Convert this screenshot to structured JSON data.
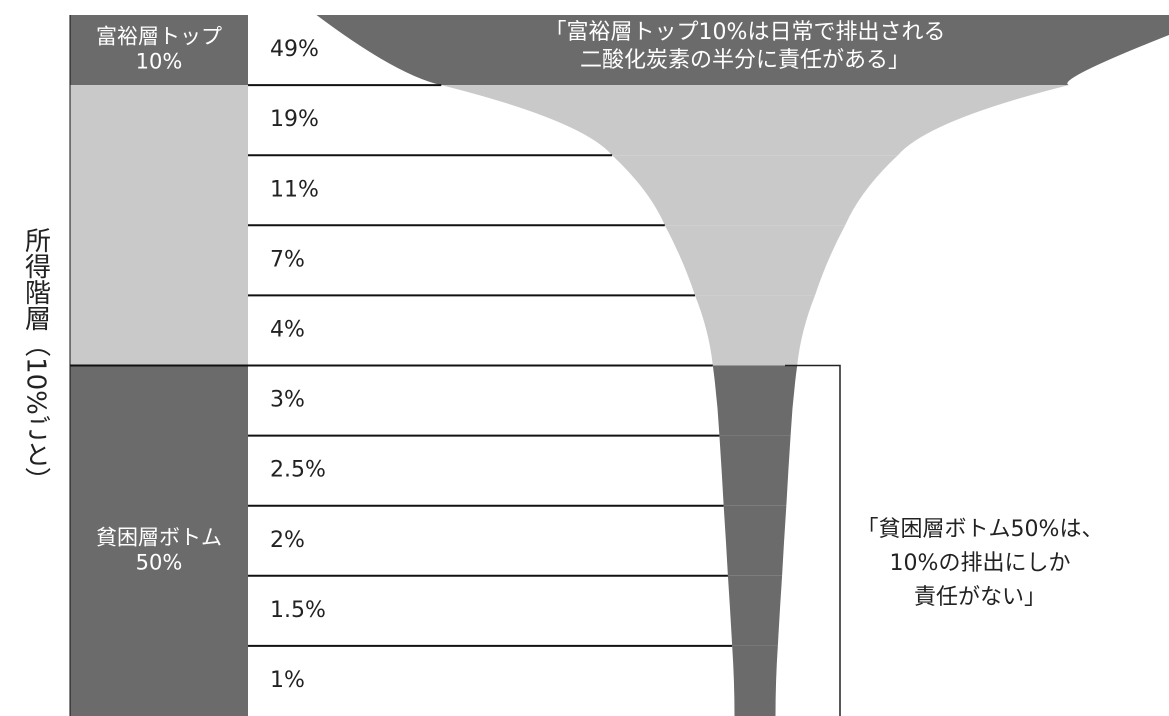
{
  "chart_data": {
    "type": "funnel",
    "y_label": "所得階層（10%ごと）",
    "values": [
      49,
      19,
      11,
      7,
      4,
      3,
      2.5,
      2,
      1.5,
      1
    ],
    "value_labels": [
      "49%",
      "19%",
      "11%",
      "7%",
      "4%",
      "3%",
      "2.5%",
      "2%",
      "1.5%",
      "1%"
    ],
    "colors": [
      "#6b6b6b",
      "#c9c9c9",
      "#c9c9c9",
      "#c9c9c9",
      "#c9c9c9",
      "#6b6b6b",
      "#6b6b6b",
      "#6b6b6b",
      "#6b6b6b",
      "#6b6b6b"
    ],
    "groups": [
      {
        "label": [
          "富裕層トップ",
          "10%"
        ],
        "rows": [
          0,
          0
        ],
        "color": "#6b6b6b"
      },
      {
        "rows": [
          1,
          4
        ],
        "color": "#c9c9c9"
      },
      {
        "label": [
          "貧困層ボトム",
          "50%"
        ],
        "rows": [
          5,
          9
        ],
        "color": "#6b6b6b"
      }
    ],
    "annotations": [
      {
        "lines": [
          "「富裕層トップ10%は日常で排出される",
          "二酸化炭素の半分に責任がある」"
        ]
      },
      {
        "lines": [
          "「貧困層ボトム50%は、",
          "10%の排出にしか",
          "責任がない」"
        ]
      }
    ]
  }
}
